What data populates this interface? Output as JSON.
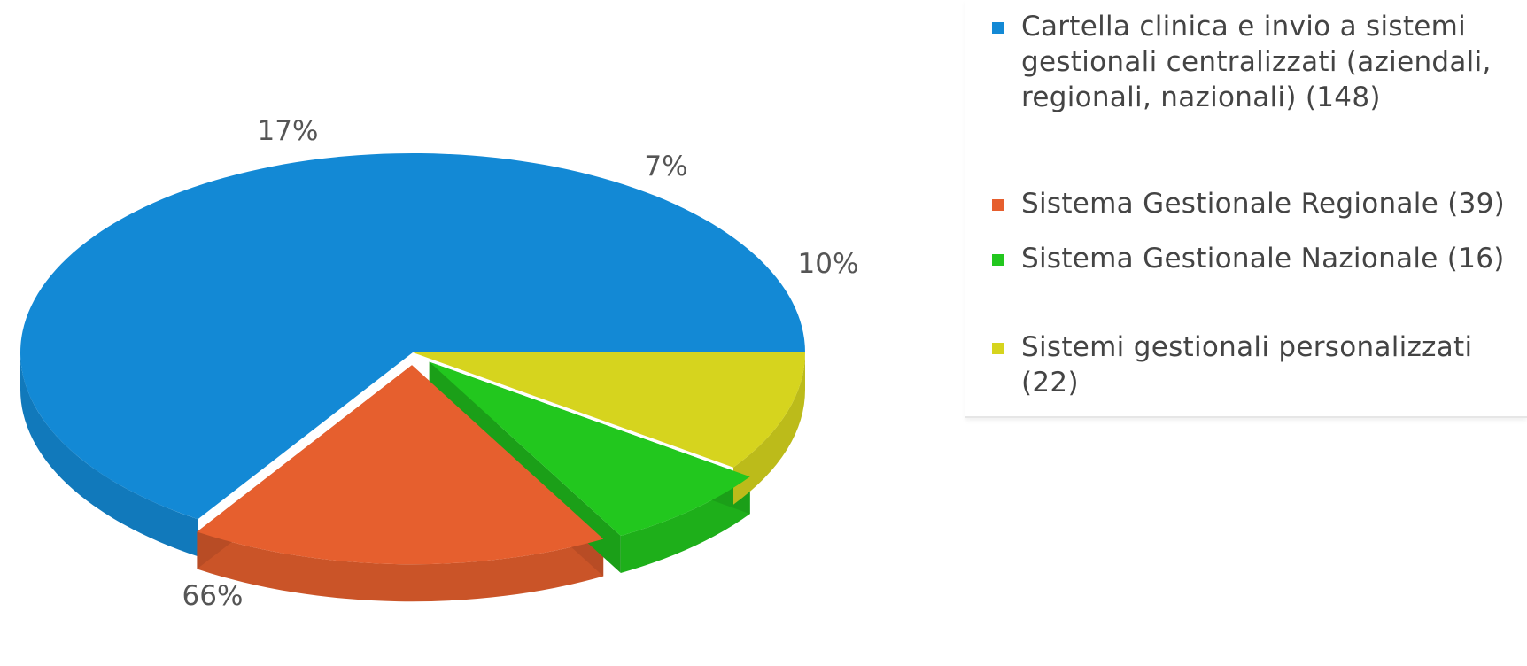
{
  "chart_data": {
    "type": "pie",
    "style": "3d",
    "title": "",
    "slices": [
      {
        "name": "Cartella clinica e invio a sistemi gestionali centralizzati (aziendali, regionali, nazionali)",
        "value": 148,
        "percent_label": "66%",
        "color": "#1389d5",
        "legend_label": "Cartella clinica e invio a sistemi gestionali centralizzati (aziendali, regionali, nazionali) (148)"
      },
      {
        "name": "Sistema Gestionale Regionale",
        "value": 39,
        "percent_label": "17%",
        "color": "#e65f2e",
        "legend_label": "Sistema Gestionale Regionale (39)",
        "exploded": true
      },
      {
        "name": "Sistema Gestionale Nazionale",
        "value": 16,
        "percent_label": "7%",
        "color": "#22c71e",
        "legend_label": "Sistema Gestionale Nazionale (16)",
        "exploded": true
      },
      {
        "name": "Sistemi gestionali personalizzati",
        "value": 22,
        "percent_label": "10%",
        "color": "#d6d41e",
        "legend_label": "Sistemi gestionali personalizzati (22)"
      }
    ],
    "legend_position": "right"
  }
}
